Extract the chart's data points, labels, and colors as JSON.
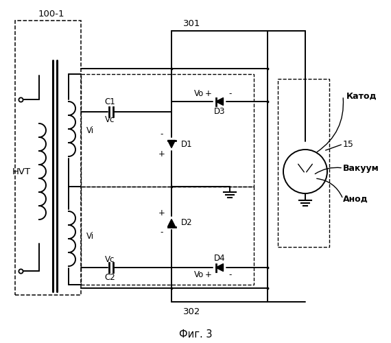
{
  "title": "Фиг. 3",
  "bg_color": "#ffffff",
  "labels": {
    "100_1": "100-1",
    "301": "301",
    "302": "302",
    "HVT": "HVT",
    "C1": "C1",
    "C2": "C2",
    "Vc_top": "Vc",
    "Vc_bot": "Vc",
    "Vi_top": "Vi",
    "Vi_bot": "Vi",
    "Vo_top": "Vo",
    "Vo_bot": "Vo",
    "D1": "D1",
    "D2": "D2",
    "D3": "D3",
    "D4": "D4",
    "num15": "15",
    "katod": "Катод",
    "vakuum": "Вакуум",
    "anod": "Анод"
  }
}
